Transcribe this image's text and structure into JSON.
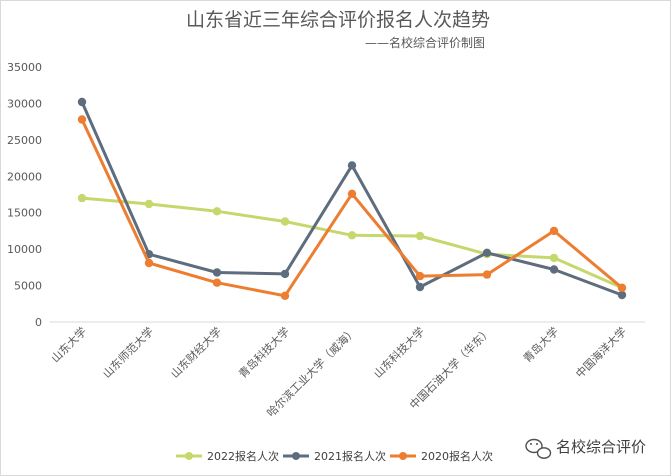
{
  "chart_data": {
    "type": "line",
    "title": "山东省近三年综合评价报名人次趋势",
    "subtitle": "——名校综合评价制图",
    "categories": [
      "山东大学",
      "山东师范大学",
      "山东财经大学",
      "青岛科技大学",
      "哈尔滨工业大学（威海）",
      "山东科技大学",
      "中国石油大学（华东）",
      "青岛大学",
      "中国海洋大学"
    ],
    "y_ticks": [
      "35000",
      "30000",
      "25000",
      "20000",
      "15000",
      "10000",
      "5000",
      "0"
    ],
    "ylim": [
      0,
      35000
    ],
    "grid": false,
    "legend_position": "bottom",
    "series": [
      {
        "name": "2022报名人次",
        "color": "#c5d86d",
        "values": [
          17000,
          16200,
          15200,
          13800,
          11900,
          11800,
          9300,
          8800,
          4700
        ]
      },
      {
        "name": "2021报名人次",
        "color": "#5d6d7e",
        "values": [
          30200,
          9300,
          6800,
          6600,
          21500,
          4800,
          9500,
          7200,
          3700
        ]
      },
      {
        "name": "2020报名人次",
        "color": "#ed7d31",
        "values": [
          27800,
          8100,
          5400,
          3600,
          17600,
          6300,
          6500,
          12500,
          4700
        ]
      }
    ]
  },
  "watermark": {
    "text": "名校综合评价",
    "icon": "wechat-icon"
  }
}
